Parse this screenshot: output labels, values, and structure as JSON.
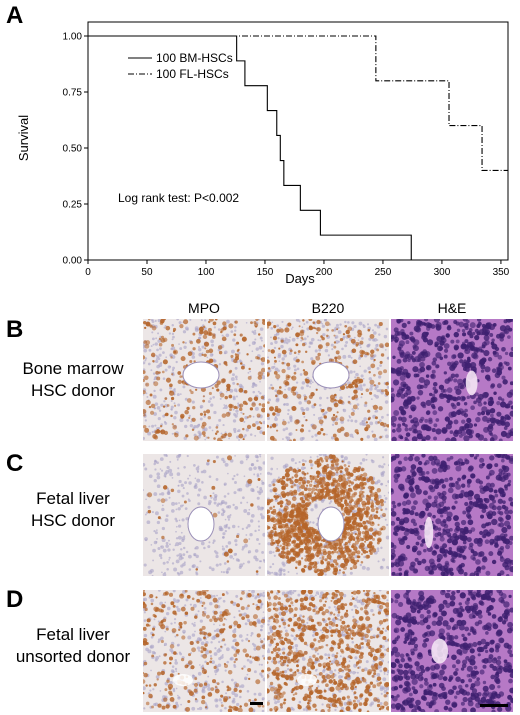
{
  "panels": {
    "a": "A",
    "b": "B",
    "c": "C",
    "d": "D"
  },
  "chart_data": {
    "type": "line",
    "xlabel": "Days",
    "ylabel": "Survival",
    "xlim": [
      0,
      356
    ],
    "ylim": [
      0,
      1
    ],
    "xticks": [
      0,
      50,
      100,
      150,
      200,
      250,
      300,
      350
    ],
    "yticks": [
      "0.00",
      "0.25",
      "0.50",
      "0.75",
      "1.00"
    ],
    "grid": false,
    "legend_position": "top-left",
    "annotation": "Log rank test: P<0.002",
    "series": [
      {
        "name": "100 BM-HSCs",
        "style": "solid",
        "x": [
          0,
          126,
          126,
          133,
          133,
          152,
          152,
          160,
          160,
          163,
          163,
          166,
          166,
          180,
          180,
          197,
          197,
          274,
          274
        ],
        "y": [
          1.0,
          1.0,
          0.889,
          0.889,
          0.778,
          0.778,
          0.667,
          0.667,
          0.556,
          0.556,
          0.444,
          0.444,
          0.333,
          0.333,
          0.222,
          0.222,
          0.111,
          0.111,
          0.0
        ]
      },
      {
        "name": "100 FL-HSCs",
        "style": "dashed",
        "x": [
          0,
          244,
          244,
          306,
          306,
          334,
          334,
          356
        ],
        "y": [
          1.0,
          1.0,
          0.8,
          0.8,
          0.6,
          0.6,
          0.4,
          0.4
        ]
      }
    ]
  },
  "histology": {
    "columns": [
      "MPO",
      "B220",
      "H&E"
    ],
    "rows": [
      {
        "letter_key": "b",
        "line1": "Bone marrow",
        "line2": "HSC donor",
        "b220_intensity": 0.2
      },
      {
        "letter_key": "c",
        "line1": "Fetal liver",
        "line2": "HSC donor",
        "b220_intensity": 1.0
      },
      {
        "letter_key": "d",
        "line1": "Fetal liver",
        "line2": "unsorted donor",
        "b220_intensity": 0.6
      }
    ],
    "colors": {
      "stain_background": "#ece6e6",
      "hematoxylin": "#a9a1c6",
      "dab_brown": "#b5652a",
      "he_pink": "#b679c6",
      "he_nuclei": "#3e2070"
    }
  }
}
